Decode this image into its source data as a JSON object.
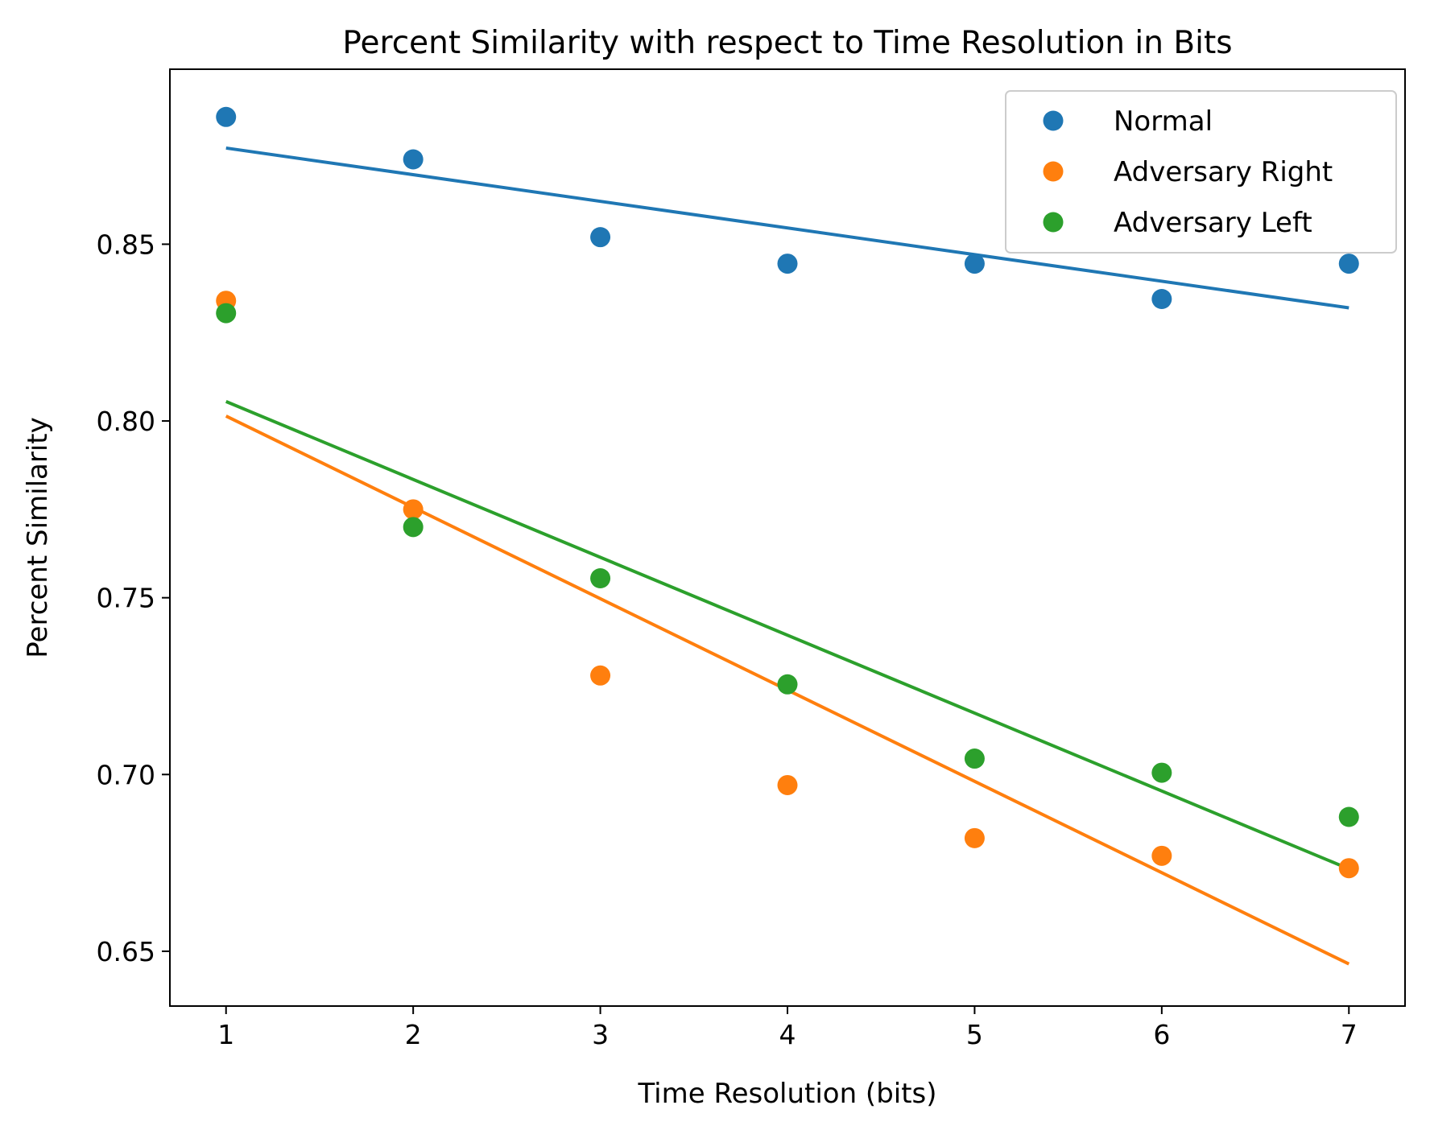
{
  "chart_data": {
    "type": "scatter",
    "title": "Percent Similarity with respect to Time Resolution in Bits",
    "xlabel": "Time Resolution (bits)",
    "ylabel": "Percent Similarity",
    "xlim": [
      0.7,
      7.3
    ],
    "ylim": [
      0.6345,
      0.8995
    ],
    "x_ticks": [
      1,
      2,
      3,
      4,
      5,
      6,
      7
    ],
    "x_tick_labels": [
      "1",
      "2",
      "3",
      "4",
      "5",
      "6",
      "7"
    ],
    "y_ticks": [
      0.65,
      0.7,
      0.75,
      0.8,
      0.85
    ],
    "y_tick_labels": [
      "0.65",
      "0.70",
      "0.75",
      "0.80",
      "0.85"
    ],
    "grid": false,
    "legend_position": "top-right",
    "x": [
      1,
      2,
      3,
      4,
      5,
      6,
      7
    ],
    "series": [
      {
        "name": "Normal",
        "color": "#1f77b4",
        "values": [
          0.886,
          0.874,
          0.852,
          0.8445,
          0.8445,
          0.8345,
          0.8445
        ],
        "trend": [
          0.8772,
          0.832
        ]
      },
      {
        "name": "Adversary Right",
        "color": "#ff7f0e",
        "values": [
          0.834,
          0.775,
          0.728,
          0.697,
          0.682,
          0.677,
          0.6735
        ],
        "trend": [
          0.8014,
          0.6464
        ]
      },
      {
        "name": "Adversary Left",
        "color": "#2ca02c",
        "values": [
          0.8305,
          0.77,
          0.7555,
          0.7255,
          0.7045,
          0.7005,
          0.688
        ],
        "trend": [
          0.8055,
          0.6733
        ]
      }
    ]
  }
}
